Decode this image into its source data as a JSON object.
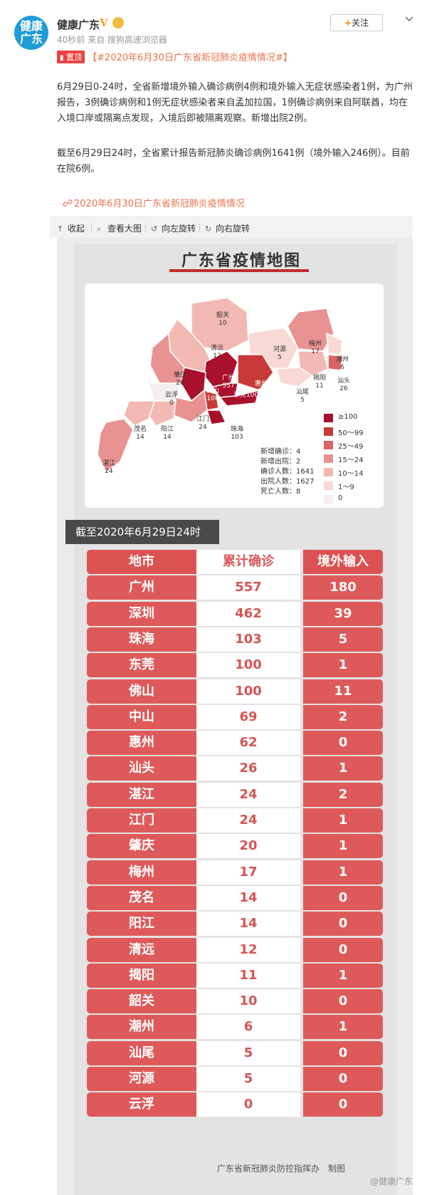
{
  "header": {
    "avatar_line1": "健康",
    "avatar_line2": "广东",
    "user_name": "健康广东",
    "verified_mark": "V",
    "meta": "40秒前 来自 搜狗高速浏览器",
    "follow_label": "关注",
    "follow_plus": "+"
  },
  "post": {
    "top_badge": "置顶",
    "hashtag": "【#2020年6月30日广东省新冠肺炎疫情情况#】",
    "para1": "6月29日0-24时，全省新增境外输入确诊病例4例和境外输入无症状感染者1例，为广州报告，3例确诊病例和1例无症状感染者来自孟加拉国，1例确诊病例来自阿联酋，均在入境口岸或隔离点发现，入境后即被隔离观察。新增出院2例。",
    "para2": "截至6月29日24时，全省累计报告新冠肺炎确诊病例1641例（境外输入246例）。目前在院6例。",
    "topic_link": "2020年6月30日广东省新冠肺炎疫情情况"
  },
  "toolbar": {
    "collapse": "收起",
    "view_large": "查看大图",
    "rotate_left": "向左旋转",
    "rotate_right": "向右旋转"
  },
  "infographic": {
    "title": "广东省疫情地图",
    "map_labels": [
      {
        "name": "韶关",
        "value": "10"
      },
      {
        "name": "梅州",
        "value": "17"
      },
      {
        "name": "河源",
        "value": "5"
      },
      {
        "name": "清远",
        "value": "12"
      },
      {
        "name": "潮州",
        "value": "6"
      },
      {
        "name": "揭阳",
        "value": "11"
      },
      {
        "name": "汕头",
        "value": "26"
      },
      {
        "name": "肇庆",
        "value": "20"
      },
      {
        "name": "广州",
        "value": "557"
      },
      {
        "name": "惠州",
        "value": "62"
      },
      {
        "name": "汕尾",
        "value": "5"
      },
      {
        "name": "云浮",
        "value": "0"
      },
      {
        "name": "佛山",
        "value": "100"
      },
      {
        "name": "东莞",
        "value": "100"
      },
      {
        "name": "深圳",
        "value": "462"
      },
      {
        "name": "中山",
        "value": "69"
      },
      {
        "name": "江门",
        "value": "24"
      },
      {
        "name": "珠海",
        "value": "103"
      },
      {
        "name": "茂名",
        "value": "14"
      },
      {
        "name": "阳江",
        "value": "14"
      },
      {
        "name": "湛江",
        "value": "24"
      }
    ],
    "legend": [
      {
        "label": "≥100",
        "color": "#a8102c"
      },
      {
        "label": "50～99",
        "color": "#c83a3a"
      },
      {
        "label": "25～49",
        "color": "#dc6464"
      },
      {
        "label": "15～24",
        "color": "#e99292"
      },
      {
        "label": "10～14",
        "color": "#f2b9b3"
      },
      {
        "label": "1～9",
        "color": "#f8d9d4"
      },
      {
        "label": "0",
        "color": "#f4eeee"
      }
    ],
    "stats": [
      {
        "label": "新增确诊",
        "value": "4"
      },
      {
        "label": "新增出院",
        "value": "2"
      },
      {
        "label": "确诊人数",
        "value": "1641"
      },
      {
        "label": "出院人数",
        "value": "1627"
      },
      {
        "label": "死亡人数",
        "value": "8"
      }
    ],
    "date_banner": "截至2020年6月29日24时",
    "table_headers": [
      "地市",
      "累计确诊",
      "境外输入"
    ],
    "rows": [
      {
        "city": "广州",
        "confirmed": "557",
        "imported": "180"
      },
      {
        "city": "深圳",
        "confirmed": "462",
        "imported": "39"
      },
      {
        "city": "珠海",
        "confirmed": "103",
        "imported": "5"
      },
      {
        "city": "东莞",
        "confirmed": "100",
        "imported": "1"
      },
      {
        "city": "佛山",
        "confirmed": "100",
        "imported": "11"
      },
      {
        "city": "中山",
        "confirmed": "69",
        "imported": "2"
      },
      {
        "city": "惠州",
        "confirmed": "62",
        "imported": "0"
      },
      {
        "city": "汕头",
        "confirmed": "26",
        "imported": "1"
      },
      {
        "city": "湛江",
        "confirmed": "24",
        "imported": "2"
      },
      {
        "city": "江门",
        "confirmed": "24",
        "imported": "1"
      },
      {
        "city": "肇庆",
        "confirmed": "20",
        "imported": "1"
      },
      {
        "city": "梅州",
        "confirmed": "17",
        "imported": "1"
      },
      {
        "city": "茂名",
        "confirmed": "14",
        "imported": "0"
      },
      {
        "city": "阳江",
        "confirmed": "14",
        "imported": "0"
      },
      {
        "city": "清远",
        "confirmed": "12",
        "imported": "0"
      },
      {
        "city": "揭阳",
        "confirmed": "11",
        "imported": "1"
      },
      {
        "city": "韶关",
        "confirmed": "10",
        "imported": "0"
      },
      {
        "city": "潮州",
        "confirmed": "6",
        "imported": "1"
      },
      {
        "city": "汕尾",
        "confirmed": "5",
        "imported": "0"
      },
      {
        "city": "河源",
        "confirmed": "5",
        "imported": "0"
      },
      {
        "city": "云浮",
        "confirmed": "0",
        "imported": "0"
      }
    ],
    "footer": "广东省新冠肺炎防控指挥办　制图",
    "watermark": "@健康广东"
  },
  "colors": {
    "accent_orange": "#eb7350",
    "table_red": "#de5a5a"
  }
}
